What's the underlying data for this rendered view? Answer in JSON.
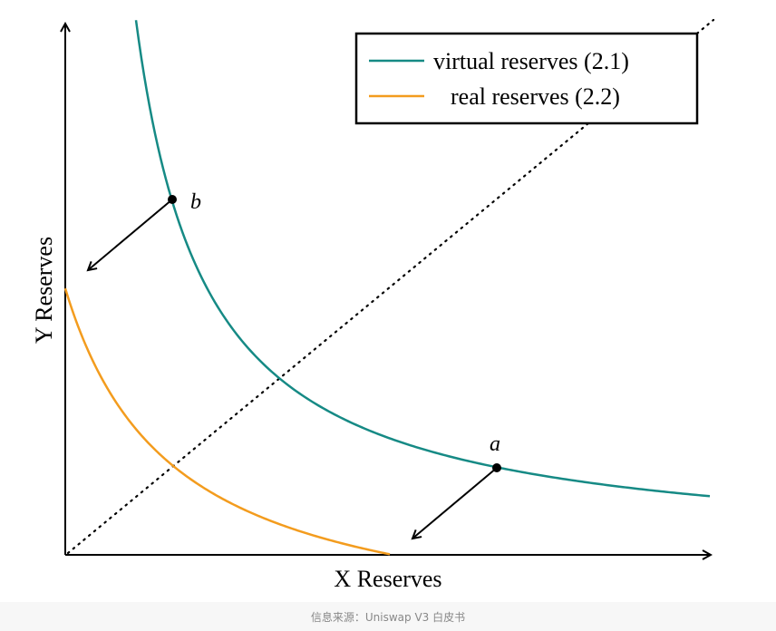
{
  "legend": {
    "items": [
      {
        "label": "virtual reserves (2.1)"
      },
      {
        "label": "real reserves (2.2)"
      }
    ]
  },
  "points": {
    "a": "a",
    "b": "b"
  },
  "axes": {
    "x_label": "X Reserves",
    "y_label": "Y Reserves"
  },
  "caption": "信息来源：Uniswap V3 白皮书"
}
